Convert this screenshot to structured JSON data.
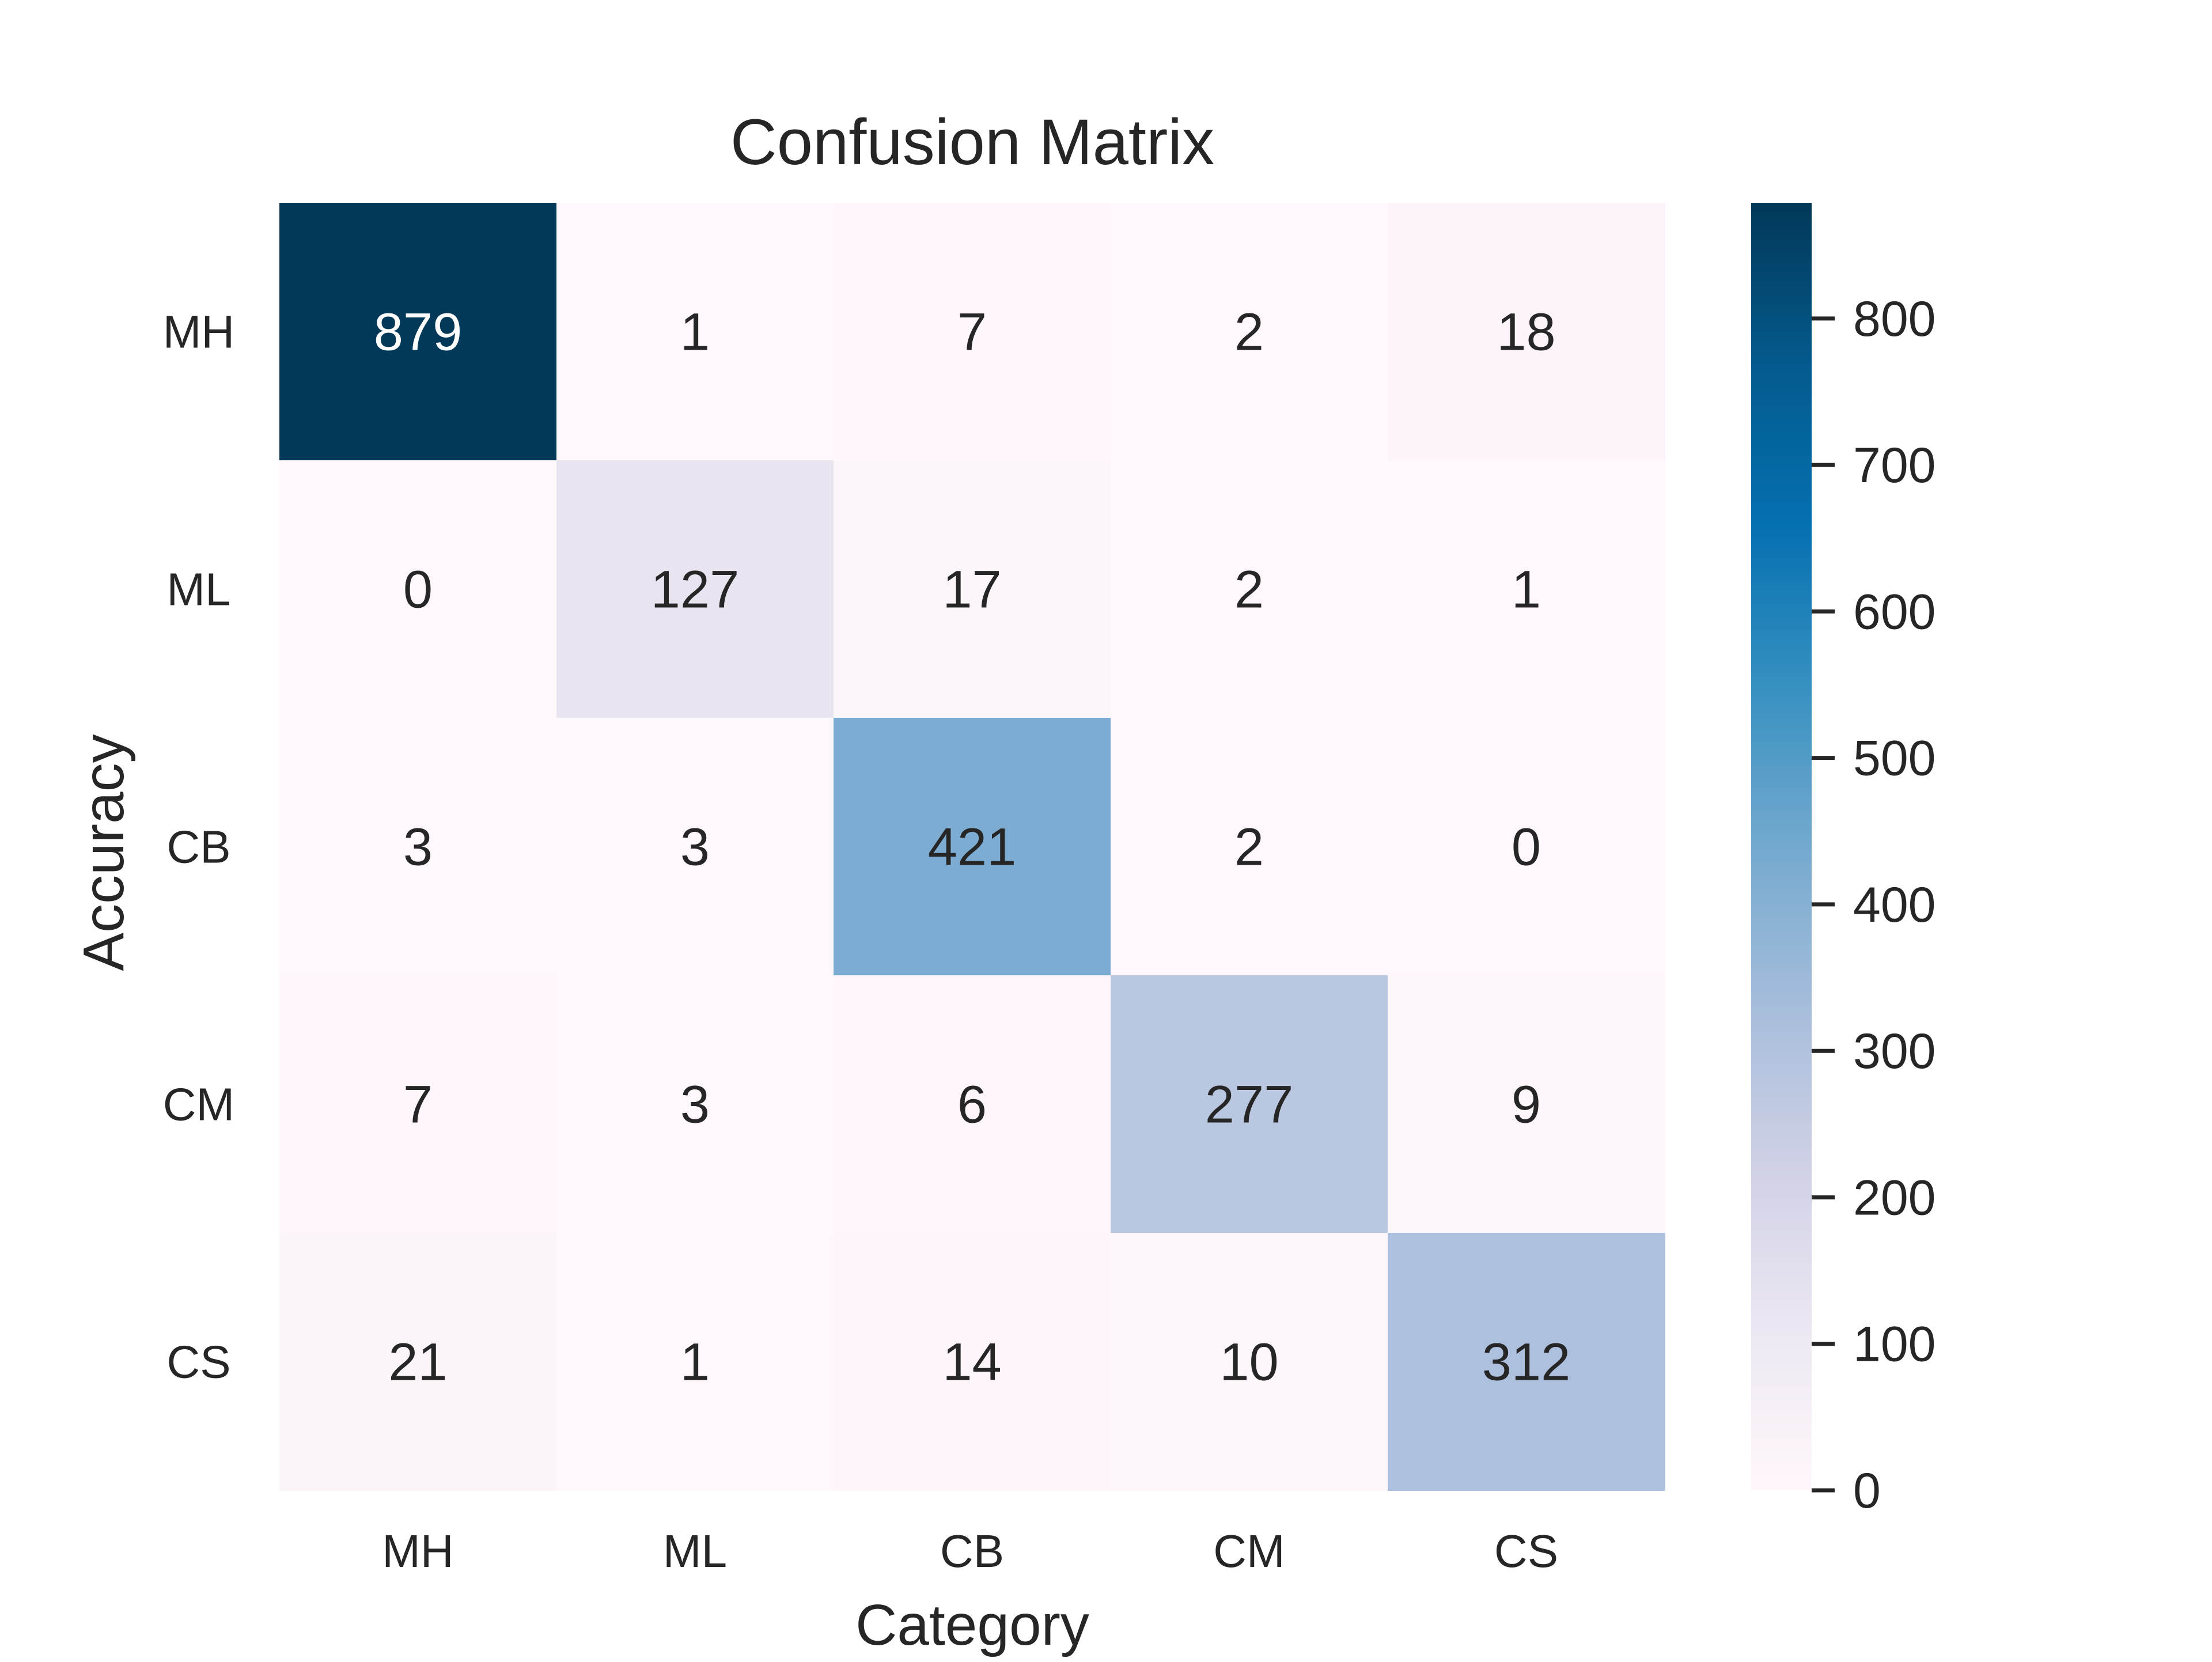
{
  "chart_data": {
    "type": "heatmap",
    "title": "Confusion Matrix",
    "xlabel": "Category",
    "ylabel": "Accuracy",
    "x_categories": [
      "MH",
      "ML",
      "CB",
      "CM",
      "CS"
    ],
    "y_categories": [
      "MH",
      "ML",
      "CB",
      "CM",
      "CS"
    ],
    "values": [
      [
        879,
        1,
        7,
        2,
        18
      ],
      [
        0,
        127,
        17,
        2,
        1
      ],
      [
        3,
        3,
        421,
        2,
        0
      ],
      [
        7,
        3,
        6,
        277,
        9
      ],
      [
        21,
        1,
        14,
        10,
        312
      ]
    ],
    "colorbar": {
      "min": 0,
      "max": 879,
      "ticks": [
        0,
        100,
        200,
        300,
        400,
        500,
        600,
        700,
        800
      ],
      "colormap": "PuBu",
      "colors": [
        "#fff7fb",
        "#ece7f2",
        "#d0d1e6",
        "#a6bddb",
        "#74a9cf",
        "#3690c0",
        "#0570b0",
        "#045a8d",
        "#023858"
      ]
    },
    "grid": false,
    "legend": "colorbar-right"
  }
}
